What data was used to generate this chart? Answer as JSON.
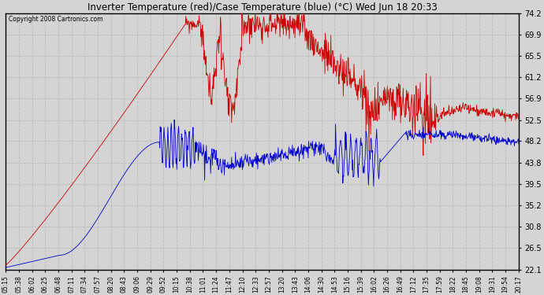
{
  "title": "Inverter Temperature (red)/Case Temperature (blue) (°C) Wed Jun 18 20:33",
  "copyright": "Copyright 2008 Cartronics.com",
  "background_color": "#d4d4d4",
  "plot_bg_color": "#d4d4d4",
  "grid_color": "#c8c8c8",
  "red_color": "#cc0000",
  "blue_color": "#0000cc",
  "yticks": [
    22.1,
    26.5,
    30.8,
    35.2,
    39.5,
    43.8,
    48.2,
    52.5,
    56.9,
    61.2,
    65.5,
    69.9,
    74.2
  ],
  "ymin": 22.1,
  "ymax": 74.2,
  "xtick_labels": [
    "05:15",
    "05:38",
    "06:02",
    "06:25",
    "06:48",
    "07:11",
    "07:34",
    "07:57",
    "08:20",
    "08:43",
    "09:06",
    "09:29",
    "09:52",
    "10:15",
    "10:38",
    "11:01",
    "11:24",
    "11:47",
    "12:10",
    "12:33",
    "12:57",
    "13:20",
    "13:43",
    "14:06",
    "14:30",
    "14:53",
    "15:16",
    "15:39",
    "16:02",
    "16:26",
    "16:49",
    "17:12",
    "17:35",
    "17:59",
    "18:22",
    "18:45",
    "19:08",
    "19:31",
    "19:54",
    "20:17"
  ]
}
